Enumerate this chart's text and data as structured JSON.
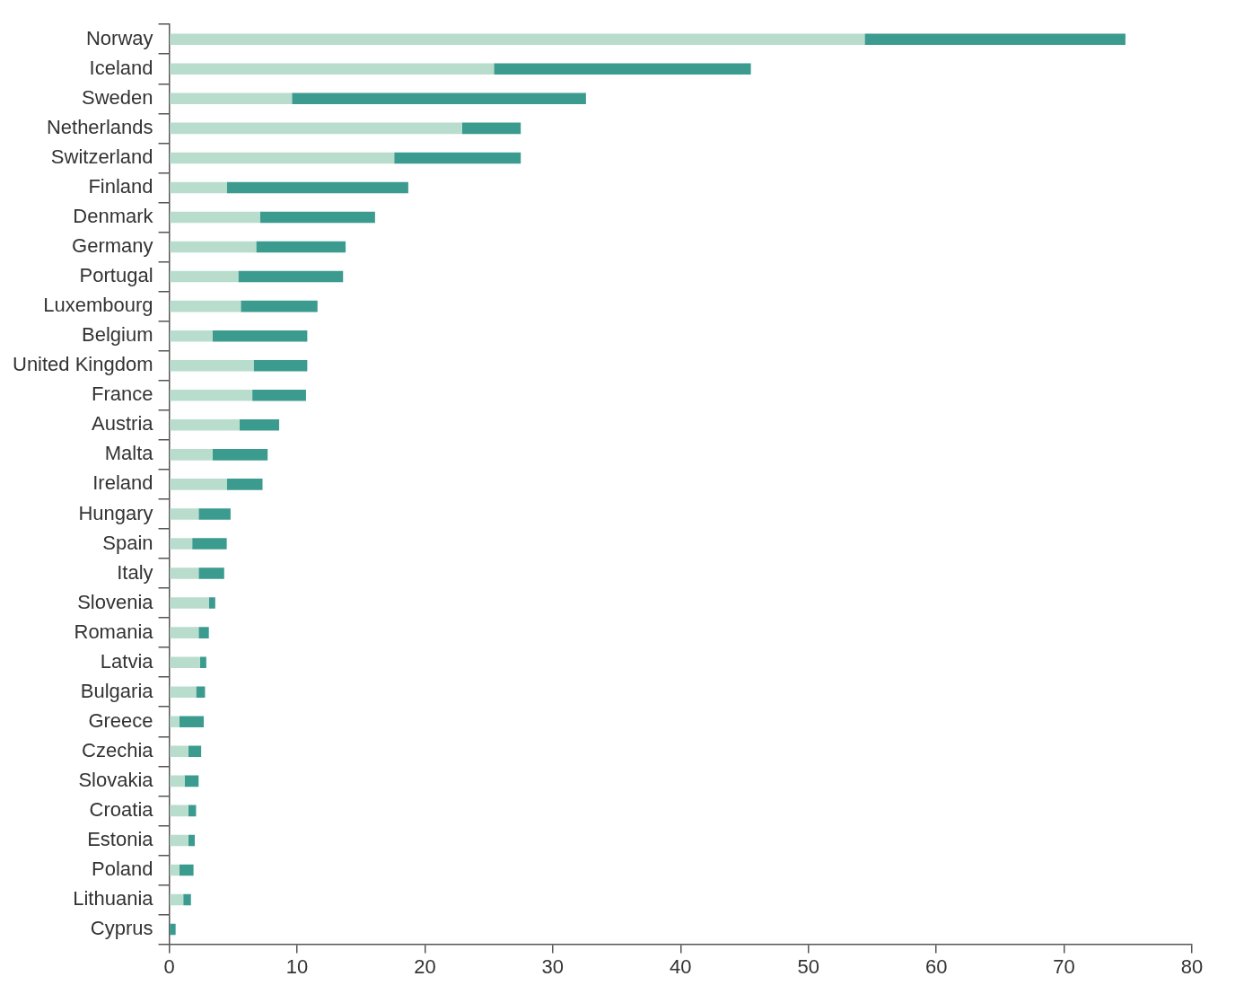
{
  "chart_data": {
    "type": "bar",
    "orientation": "horizontal",
    "stacked": true,
    "grid": false,
    "legend": false,
    "categories": [
      "Norway",
      "Iceland",
      "Sweden",
      "Netherlands",
      "Switzerland",
      "Finland",
      "Denmark",
      "Germany",
      "Portugal",
      "Luxembourg",
      "Belgium",
      "United Kingdom",
      "France",
      "Austria",
      "Malta",
      "Ireland",
      "Hungary",
      "Spain",
      "Italy",
      "Slovenia",
      "Romania",
      "Latvia",
      "Bulgaria",
      "Greece",
      "Czechia",
      "Slovakia",
      "Croatia",
      "Estonia",
      "Poland",
      "Lithuania",
      "Cyprus"
    ],
    "series": [
      {
        "color": "#b9ddcd",
        "values": [
          54.4,
          25.4,
          9.6,
          22.9,
          17.6,
          4.5,
          7.1,
          6.8,
          5.4,
          5.6,
          3.4,
          6.6,
          6.5,
          5.5,
          3.4,
          4.5,
          2.3,
          1.8,
          2.3,
          3.1,
          2.3,
          2.4,
          2.1,
          0.8,
          1.5,
          1.2,
          1.5,
          1.5,
          0.8,
          1.1,
          0
        ]
      },
      {
        "color": "#3a9b8e",
        "values": [
          20.4,
          20.1,
          23.0,
          4.6,
          9.9,
          14.2,
          9.0,
          7.0,
          8.2,
          6.0,
          7.4,
          4.2,
          4.2,
          3.1,
          4.3,
          2.8,
          2.5,
          2.7,
          2.0,
          0.5,
          0.8,
          0.5,
          0.7,
          1.9,
          1.0,
          1.1,
          0.6,
          0.5,
          1.1,
          0.6,
          0.5
        ]
      }
    ],
    "xlim": [
      0,
      80
    ],
    "xticks": [
      0,
      10,
      20,
      30,
      40,
      50,
      60,
      70,
      80
    ]
  }
}
